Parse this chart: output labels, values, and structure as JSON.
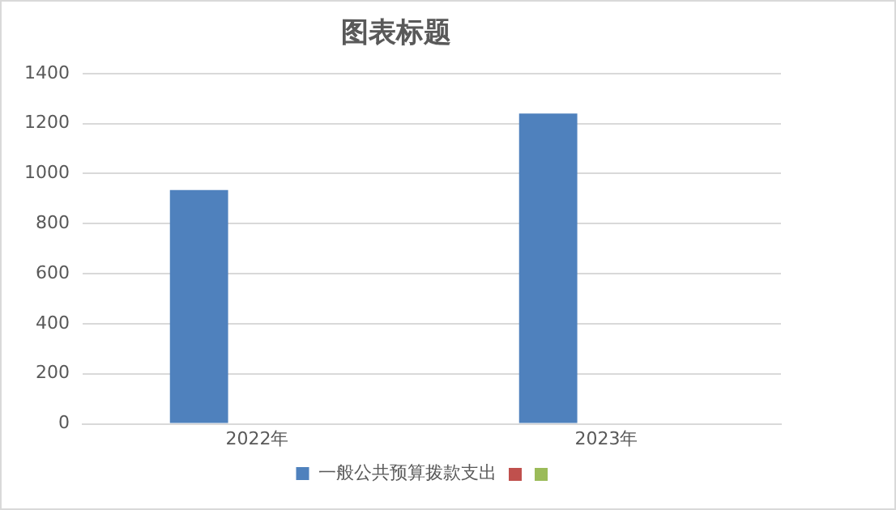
{
  "chart_data": {
    "type": "bar",
    "title": "图表标题",
    "categories": [
      "2022年",
      "2023年"
    ],
    "series": [
      {
        "name": "一般公共预算拨款支出",
        "color": "#4f81bd",
        "values": [
          934,
          1240
        ]
      },
      {
        "color": "#c0504d",
        "values": [
          null,
          null
        ]
      },
      {
        "color": "#9bbb59",
        "values": [
          null,
          null
        ]
      }
    ],
    "ylim": [
      0,
      1400
    ],
    "yticks": [
      0,
      200,
      400,
      600,
      800,
      1000,
      1200,
      1400
    ],
    "grid": "y",
    "legend": "bottom"
  }
}
